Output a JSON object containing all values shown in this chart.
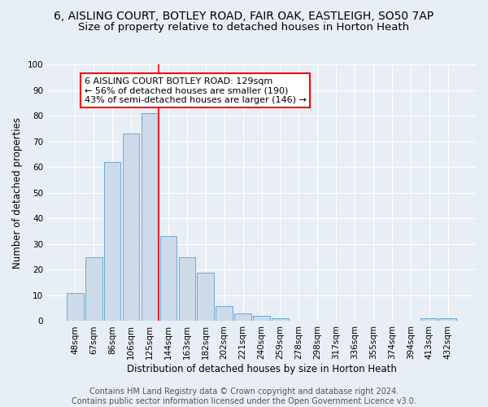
{
  "title_line1": "6, AISLING COURT, BOTLEY ROAD, FAIR OAK, EASTLEIGH, SO50 7AP",
  "title_line2": "Size of property relative to detached houses in Horton Heath",
  "xlabel": "Distribution of detached houses by size in Horton Heath",
  "ylabel": "Number of detached properties",
  "bin_labels": [
    "48sqm",
    "67sqm",
    "86sqm",
    "106sqm",
    "125sqm",
    "144sqm",
    "163sqm",
    "182sqm",
    "202sqm",
    "221sqm",
    "240sqm",
    "259sqm",
    "278sqm",
    "298sqm",
    "317sqm",
    "336sqm",
    "355sqm",
    "374sqm",
    "394sqm",
    "413sqm",
    "432sqm"
  ],
  "bar_heights": [
    11,
    25,
    62,
    73,
    81,
    33,
    25,
    19,
    6,
    3,
    2,
    1,
    0,
    0,
    0,
    0,
    0,
    0,
    0,
    1,
    1
  ],
  "bar_color": "#ccdaea",
  "bar_edge_color": "#6aaad4",
  "background_color": "#e8eef5",
  "grid_color": "#ffffff",
  "vline_x_index": 4.5,
  "vline_color": "red",
  "annotation_line1": "6 AISLING COURT BOTLEY ROAD: 129sqm",
  "annotation_line2": "← 56% of detached houses are smaller (190)",
  "annotation_line3": "43% of semi-detached houses are larger (146) →",
  "annotation_box_color": "white",
  "annotation_box_edge_color": "red",
  "ylim": [
    0,
    100
  ],
  "yticks": [
    0,
    10,
    20,
    30,
    40,
    50,
    60,
    70,
    80,
    90,
    100
  ],
  "footnote": "Contains HM Land Registry data © Crown copyright and database right 2024.\nContains public sector information licensed under the Open Government Licence v3.0.",
  "title_fontsize": 10,
  "subtitle_fontsize": 9.5,
  "axis_label_fontsize": 8.5,
  "tick_fontsize": 7.5,
  "annotation_fontsize": 8,
  "footnote_fontsize": 7
}
